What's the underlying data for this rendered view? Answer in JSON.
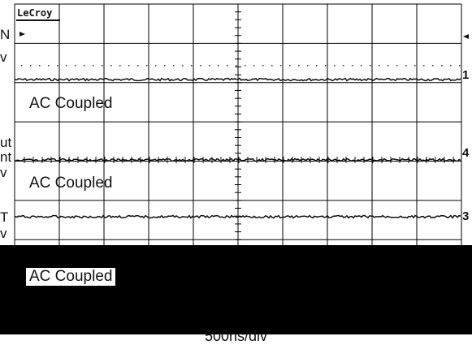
{
  "brand": "LeCroy",
  "left_labels": [
    "N",
    "v",
    "ut",
    "nt",
    "v",
    "T",
    "v"
  ],
  "channels": [
    "1",
    "4",
    "3"
  ],
  "coupling": [
    "AC Coupled",
    "AC Coupled",
    "AC Coupled"
  ],
  "timebase": "500ns/div",
  "colors": {
    "trace": "#111111",
    "grid": "#000000",
    "background": "#ffffff",
    "occluder": "#000000"
  },
  "icons": {
    "left_marker": "right-pointing-arrow-icon",
    "right_marker": "left-pointing-arrow-icon"
  }
}
